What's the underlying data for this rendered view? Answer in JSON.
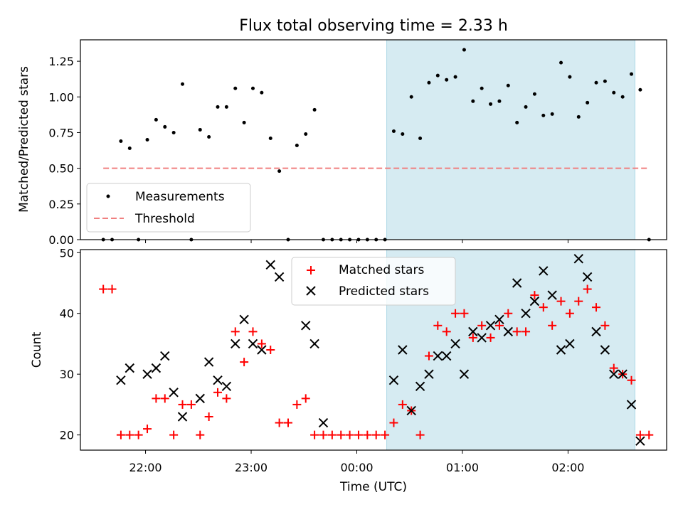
{
  "chart_data": [
    {
      "type": "scatter",
      "title": "Flux total observing time = 2.33 h",
      "xlabel": "",
      "ylabel": "Matched/Predicted stars",
      "ylim": [
        0,
        1.4
      ],
      "yticks": [
        "0.00",
        "0.25",
        "0.50",
        "0.75",
        "1.00",
        "1.25"
      ],
      "xlim": [
        "21:23",
        "02:56"
      ],
      "grid": false,
      "legend": "bottom-left",
      "shaded_x": [
        "00:17",
        "02:38"
      ],
      "shade_color": "#add8e6",
      "series": [
        {
          "name": "Measurements",
          "kind": "dot",
          "color": "#000000",
          "points": [
            [
              "21:36",
              0.0
            ],
            [
              "21:41",
              0.0
            ],
            [
              "21:46",
              0.69
            ],
            [
              "21:51",
              0.64
            ],
            [
              "21:56",
              0.0
            ],
            [
              "22:01",
              0.7
            ],
            [
              "22:06",
              0.84
            ],
            [
              "22:11",
              0.79
            ],
            [
              "22:16",
              0.75
            ],
            [
              "22:21",
              1.09
            ],
            [
              "22:26",
              0.0
            ],
            [
              "22:31",
              0.77
            ],
            [
              "22:36",
              0.72
            ],
            [
              "22:41",
              0.93
            ],
            [
              "22:46",
              0.93
            ],
            [
              "22:51",
              1.06
            ],
            [
              "22:56",
              0.82
            ],
            [
              "23:01",
              1.06
            ],
            [
              "23:06",
              1.03
            ],
            [
              "23:11",
              0.71
            ],
            [
              "23:16",
              0.48
            ],
            [
              "23:21",
              0.0
            ],
            [
              "23:26",
              0.66
            ],
            [
              "23:31",
              0.74
            ],
            [
              "23:36",
              0.91
            ],
            [
              "23:41",
              0.0
            ],
            [
              "23:46",
              0.0
            ],
            [
              "23:51",
              0.0
            ],
            [
              "23:56",
              0.0
            ],
            [
              "00:01",
              0.0
            ],
            [
              "00:06",
              0.0
            ],
            [
              "00:11",
              0.0
            ],
            [
              "00:16",
              0.0
            ],
            [
              "00:21",
              0.76
            ],
            [
              "00:26",
              0.74
            ],
            [
              "00:31",
              1.0
            ],
            [
              "00:36",
              0.71
            ],
            [
              "00:41",
              1.1
            ],
            [
              "00:46",
              1.15
            ],
            [
              "00:51",
              1.12
            ],
            [
              "00:56",
              1.14
            ],
            [
              "01:01",
              1.33
            ],
            [
              "01:06",
              0.97
            ],
            [
              "01:11",
              1.06
            ],
            [
              "01:16",
              0.95
            ],
            [
              "01:21",
              0.97
            ],
            [
              "01:26",
              1.08
            ],
            [
              "01:31",
              0.82
            ],
            [
              "01:36",
              0.93
            ],
            [
              "01:41",
              1.02
            ],
            [
              "01:46",
              0.87
            ],
            [
              "01:51",
              0.88
            ],
            [
              "01:56",
              1.24
            ],
            [
              "02:01",
              1.14
            ],
            [
              "02:06",
              0.86
            ],
            [
              "02:11",
              0.96
            ],
            [
              "02:16",
              1.1
            ],
            [
              "02:21",
              1.11
            ],
            [
              "02:26",
              1.03
            ],
            [
              "02:31",
              1.0
            ],
            [
              "02:36",
              1.16
            ],
            [
              "02:41",
              1.05
            ],
            [
              "02:46",
              0.0
            ]
          ]
        },
        {
          "name": "Threshold",
          "kind": "dashed-line",
          "color": "#f08080",
          "points": [
            [
              "21:36",
              0.5
            ],
            [
              "02:46",
              0.5
            ]
          ]
        }
      ]
    },
    {
      "type": "scatter",
      "title": "",
      "xlabel": "Time (UTC)",
      "ylabel": "Count",
      "ylim": [
        17.5,
        50.5
      ],
      "yticks": [
        "20",
        "30",
        "40",
        "50"
      ],
      "xticks": [
        "22:00",
        "23:00",
        "00:00",
        "01:00",
        "02:00"
      ],
      "xlim": [
        "21:23",
        "02:56"
      ],
      "grid": false,
      "legend": "top-center",
      "shaded_x": [
        "00:17",
        "02:38"
      ],
      "shade_color": "#add8e6",
      "series": [
        {
          "name": "Matched stars",
          "kind": "plus",
          "color": "#ff0000",
          "points": [
            [
              "21:36",
              44
            ],
            [
              "21:41",
              44
            ],
            [
              "21:46",
              20
            ],
            [
              "21:51",
              20
            ],
            [
              "21:56",
              20
            ],
            [
              "22:01",
              21
            ],
            [
              "22:06",
              26
            ],
            [
              "22:11",
              26
            ],
            [
              "22:16",
              20
            ],
            [
              "22:21",
              25
            ],
            [
              "22:26",
              25
            ],
            [
              "22:31",
              20
            ],
            [
              "22:36",
              23
            ],
            [
              "22:41",
              27
            ],
            [
              "22:46",
              26
            ],
            [
              "22:51",
              37
            ],
            [
              "22:56",
              32
            ],
            [
              "23:01",
              37
            ],
            [
              "23:06",
              35
            ],
            [
              "23:11",
              34
            ],
            [
              "23:16",
              22
            ],
            [
              "23:21",
              22
            ],
            [
              "23:26",
              25
            ],
            [
              "23:31",
              26
            ],
            [
              "23:36",
              20
            ],
            [
              "23:41",
              20
            ],
            [
              "23:46",
              20
            ],
            [
              "23:51",
              20
            ],
            [
              "23:56",
              20
            ],
            [
              "00:01",
              20
            ],
            [
              "00:06",
              20
            ],
            [
              "00:11",
              20
            ],
            [
              "00:16",
              20
            ],
            [
              "00:21",
              22
            ],
            [
              "00:26",
              25
            ],
            [
              "00:31",
              24
            ],
            [
              "00:36",
              20
            ],
            [
              "00:41",
              33
            ],
            [
              "00:46",
              38
            ],
            [
              "00:51",
              37
            ],
            [
              "00:56",
              40
            ],
            [
              "01:01",
              40
            ],
            [
              "01:06",
              36
            ],
            [
              "01:11",
              38
            ],
            [
              "01:16",
              36
            ],
            [
              "01:21",
              38
            ],
            [
              "01:26",
              40
            ],
            [
              "01:31",
              37
            ],
            [
              "01:36",
              37
            ],
            [
              "01:41",
              43
            ],
            [
              "01:46",
              41
            ],
            [
              "01:51",
              38
            ],
            [
              "01:56",
              42
            ],
            [
              "02:01",
              40
            ],
            [
              "02:06",
              42
            ],
            [
              "02:11",
              44
            ],
            [
              "02:16",
              41
            ],
            [
              "02:21",
              38
            ],
            [
              "02:26",
              31
            ],
            [
              "02:31",
              30
            ],
            [
              "02:36",
              29
            ],
            [
              "02:41",
              20
            ],
            [
              "02:46",
              20
            ]
          ]
        },
        {
          "name": "Predicted stars",
          "kind": "x",
          "color": "#000000",
          "points": [
            [
              "21:46",
              29
            ],
            [
              "21:51",
              31
            ],
            [
              "22:01",
              30
            ],
            [
              "22:06",
              31
            ],
            [
              "22:11",
              33
            ],
            [
              "22:16",
              27
            ],
            [
              "22:21",
              23
            ],
            [
              "22:31",
              26
            ],
            [
              "22:36",
              32
            ],
            [
              "22:41",
              29
            ],
            [
              "22:46",
              28
            ],
            [
              "22:51",
              35
            ],
            [
              "22:56",
              39
            ],
            [
              "23:01",
              35
            ],
            [
              "23:06",
              34
            ],
            [
              "23:11",
              48
            ],
            [
              "23:16",
              46
            ],
            [
              "23:31",
              38
            ],
            [
              "23:36",
              35
            ],
            [
              "23:41",
              22
            ],
            [
              "00:21",
              29
            ],
            [
              "00:26",
              34
            ],
            [
              "00:31",
              24
            ],
            [
              "00:36",
              28
            ],
            [
              "00:41",
              30
            ],
            [
              "00:46",
              33
            ],
            [
              "00:51",
              33
            ],
            [
              "00:56",
              35
            ],
            [
              "01:01",
              30
            ],
            [
              "01:06",
              37
            ],
            [
              "01:11",
              36
            ],
            [
              "01:16",
              38
            ],
            [
              "01:21",
              39
            ],
            [
              "01:26",
              37
            ],
            [
              "01:31",
              45
            ],
            [
              "01:36",
              40
            ],
            [
              "01:41",
              42
            ],
            [
              "01:46",
              47
            ],
            [
              "01:51",
              43
            ],
            [
              "01:56",
              34
            ],
            [
              "02:01",
              35
            ],
            [
              "02:06",
              49
            ],
            [
              "02:11",
              46
            ],
            [
              "02:16",
              37
            ],
            [
              "02:21",
              34
            ],
            [
              "02:26",
              30
            ],
            [
              "02:31",
              30
            ],
            [
              "02:36",
              25
            ],
            [
              "02:41",
              19
            ]
          ]
        }
      ]
    }
  ]
}
